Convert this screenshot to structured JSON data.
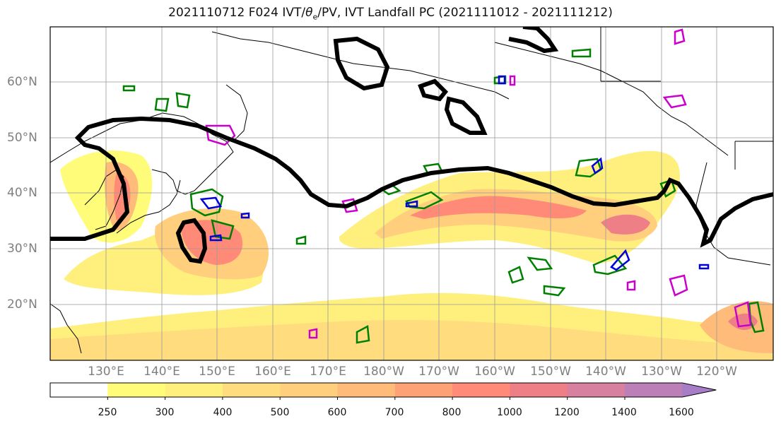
{
  "title_pre": "2021110712 F024 IVT/",
  "title_theta": "θ",
  "title_sub": "e",
  "title_post": "/PV, IVT Landfall PC (2021111012 - 2021111212)",
  "lat_labels": [
    "60°N",
    "50°N",
    "40°N",
    "30°N",
    "20°N"
  ],
  "lon_labels": [
    "130°E",
    "140°E",
    "150°E",
    "160°E",
    "170°E",
    "180°W",
    "170°W",
    "160°W",
    "150°W",
    "140°W",
    "130°W",
    "120°W"
  ],
  "colorbar": {
    "ticks": [
      "250",
      "300",
      "400",
      "500",
      "600",
      "700",
      "800",
      "1000",
      "1200",
      "1400",
      "1600"
    ],
    "colors": [
      "#ffffff",
      "#fffc7a",
      "#fff07e",
      "#ffdc7e",
      "#ffcf7d",
      "#ffbb7a",
      "#ffa177",
      "#ff8a77",
      "#ef7f86",
      "#d880a0",
      "#bd7fb8",
      "#a77dc8"
    ]
  },
  "colors": {
    "landfall_contour": "#000000",
    "theta_contour": "#008000",
    "pv_contour": "#0000dd",
    "magenta_contour": "#cc00cc",
    "coast": "#000000",
    "grid": "#999999"
  }
}
